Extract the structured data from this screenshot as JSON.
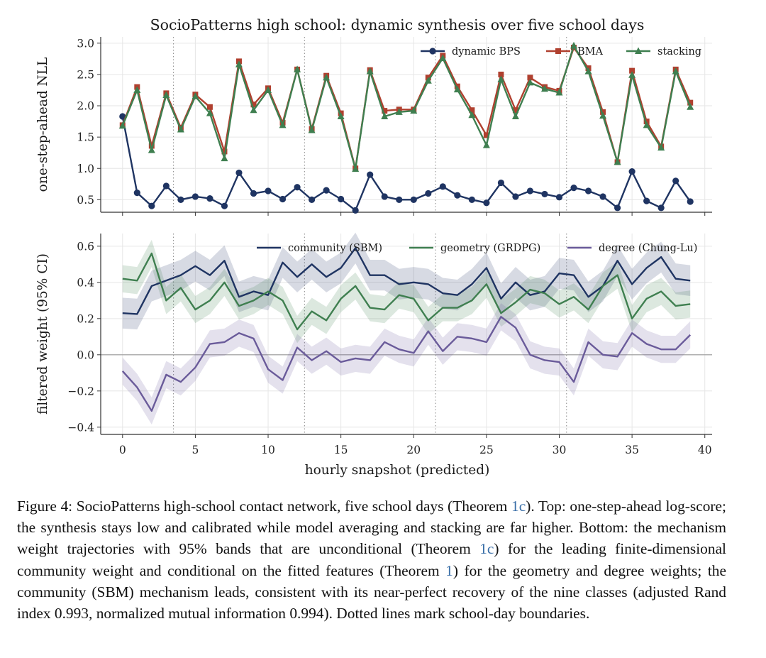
{
  "figure": {
    "title": "SocioPatterns high school: dynamic synthesis over five school days",
    "xlabel": "hourly snapshot (predicted)"
  },
  "caption": {
    "t1": "Figure 4: SocioPatterns high-school contact network, five school days (Theorem ",
    "r1": "1c",
    "t2": "). Top: one-step-ahead log-score; the synthesis stays low and calibrated while model averaging and stacking are far higher. Bottom: the mechanism weight trajectories with 95% bands that are unconditional (Theorem ",
    "r2": "1c",
    "t3": ") for the leading finite-dimensional community weight and conditional on the fitted features (Theorem ",
    "r3": "1",
    "t4": ") for the geometry and degree weights; the community (SBM) mechanism leads, consistent with its near-perfect recovery of the nine classes (adjusted Rand index 0.993, normalized mutual information 0.994). Dotted lines mark school-day boundaries."
  },
  "chart_data": [
    {
      "type": "line",
      "ylabel": "one-step-ahead NLL",
      "xlim": [
        -1.5,
        40.5
      ],
      "ylim": [
        0.3,
        3.1
      ],
      "yticks": [
        0.5,
        1.0,
        1.5,
        2.0,
        2.5,
        3.0
      ],
      "ytick_labels": [
        "0.5",
        "1.0",
        "1.5",
        "2.0",
        "2.5",
        "3.0"
      ],
      "xticks": [
        0,
        5,
        10,
        15,
        20,
        25,
        30,
        35,
        40
      ],
      "day_boundaries": [
        3.5,
        12.5,
        21.5,
        30.5
      ],
      "grid": true,
      "legend_position": "top-right",
      "x": [
        0,
        1,
        2,
        3,
        4,
        5,
        6,
        7,
        8,
        9,
        10,
        11,
        12,
        13,
        14,
        15,
        16,
        17,
        18,
        19,
        20,
        21,
        22,
        23,
        24,
        25,
        26,
        27,
        28,
        29,
        30,
        31,
        32,
        33,
        34,
        35,
        36,
        37,
        38,
        39
      ],
      "series": [
        {
          "name": "dynamic BPS",
          "color": "#1f3462",
          "marker": "circle",
          "values": [
            1.83,
            0.61,
            0.4,
            0.72,
            0.5,
            0.55,
            0.52,
            0.4,
            0.93,
            0.6,
            0.64,
            0.51,
            0.7,
            0.5,
            0.65,
            0.51,
            0.33,
            0.9,
            0.55,
            0.5,
            0.5,
            0.6,
            0.71,
            0.57,
            0.5,
            0.45,
            0.77,
            0.55,
            0.64,
            0.59,
            0.54,
            0.69,
            0.64,
            0.55,
            0.37,
            0.95,
            0.48,
            0.37,
            0.8,
            0.47
          ]
        },
        {
          "name": "BMA",
          "color": "#b0402f",
          "marker": "square",
          "values": [
            1.69,
            2.3,
            1.36,
            2.2,
            1.65,
            2.18,
            1.98,
            1.27,
            2.71,
            2.02,
            2.28,
            1.73,
            2.58,
            1.63,
            2.48,
            1.88,
            1.0,
            2.57,
            1.92,
            1.94,
            1.94,
            2.45,
            2.8,
            2.31,
            1.93,
            1.53,
            2.5,
            1.93,
            2.45,
            2.3,
            2.24,
            2.93,
            2.6,
            1.9,
            1.1,
            2.56,
            1.75,
            1.35,
            2.58,
            2.05
          ]
        },
        {
          "name": "stacking",
          "color": "#3f7f50",
          "marker": "triangle",
          "values": [
            1.68,
            2.25,
            1.29,
            2.17,
            1.62,
            2.15,
            1.88,
            1.16,
            2.66,
            1.93,
            2.25,
            1.69,
            2.58,
            1.61,
            2.45,
            1.83,
            0.99,
            2.55,
            1.83,
            1.9,
            1.92,
            2.4,
            2.76,
            2.26,
            1.85,
            1.37,
            2.42,
            1.83,
            2.37,
            2.27,
            2.21,
            2.96,
            2.55,
            1.84,
            1.1,
            2.49,
            1.69,
            1.33,
            2.55,
            1.98
          ]
        }
      ]
    },
    {
      "type": "line",
      "ylabel": "filtered weight (95% CI)",
      "xlim": [
        -1.5,
        40.5
      ],
      "ylim": [
        -0.44,
        0.67
      ],
      "yticks": [
        -0.4,
        -0.2,
        0.0,
        0.2,
        0.4,
        0.6
      ],
      "ytick_labels": [
        "−0.4",
        "−0.2",
        "0.0",
        "0.2",
        "0.4",
        "0.6"
      ],
      "xticks": [
        0,
        5,
        10,
        15,
        20,
        25,
        30,
        35,
        40
      ],
      "xtick_labels": [
        "0",
        "5",
        "10",
        "15",
        "20",
        "25",
        "30",
        "35",
        "40"
      ],
      "day_boundaries": [
        3.5,
        12.5,
        21.5,
        30.5
      ],
      "zero_line": true,
      "grid": true,
      "legend_position": "top-right",
      "x": [
        0,
        1,
        2,
        3,
        4,
        5,
        6,
        7,
        8,
        9,
        10,
        11,
        12,
        13,
        14,
        15,
        16,
        17,
        18,
        19,
        20,
        21,
        22,
        23,
        24,
        25,
        26,
        27,
        28,
        29,
        30,
        31,
        32,
        33,
        34,
        35,
        36,
        37,
        38,
        39
      ],
      "series": [
        {
          "name": "community (SBM)",
          "color": "#1f3462",
          "band_halfwidth": 0.085,
          "values": [
            0.23,
            0.225,
            0.38,
            0.41,
            0.44,
            0.49,
            0.44,
            0.52,
            0.32,
            0.35,
            0.33,
            0.51,
            0.43,
            0.5,
            0.43,
            0.48,
            0.59,
            0.44,
            0.44,
            0.39,
            0.4,
            0.39,
            0.34,
            0.33,
            0.39,
            0.48,
            0.31,
            0.4,
            0.33,
            0.35,
            0.45,
            0.44,
            0.32,
            0.38,
            0.52,
            0.39,
            0.48,
            0.54,
            0.42,
            0.41
          ]
        },
        {
          "name": "geometry (GRDPG)",
          "color": "#3f7f50",
          "band_halfwidth": 0.075,
          "values": [
            0.42,
            0.41,
            0.56,
            0.3,
            0.37,
            0.25,
            0.3,
            0.4,
            0.27,
            0.3,
            0.35,
            0.3,
            0.14,
            0.24,
            0.19,
            0.31,
            0.38,
            0.26,
            0.25,
            0.33,
            0.31,
            0.19,
            0.26,
            0.26,
            0.3,
            0.39,
            0.23,
            0.29,
            0.36,
            0.34,
            0.28,
            0.32,
            0.25,
            0.38,
            0.44,
            0.2,
            0.31,
            0.35,
            0.27,
            0.28
          ]
        },
        {
          "name": "degree (Chung-Lu)",
          "color": "#6a5b9a",
          "band_halfwidth": 0.075,
          "values": [
            -0.09,
            -0.18,
            -0.31,
            -0.11,
            -0.15,
            -0.07,
            0.06,
            0.07,
            0.12,
            0.09,
            -0.08,
            -0.14,
            0.04,
            -0.03,
            0.02,
            -0.04,
            -0.02,
            -0.03,
            0.07,
            0.03,
            0.01,
            0.13,
            0.02,
            0.1,
            0.09,
            0.07,
            0.21,
            0.15,
            0.0,
            -0.03,
            -0.04,
            -0.15,
            0.07,
            0.0,
            -0.01,
            0.12,
            0.06,
            0.03,
            0.03,
            0.11
          ]
        }
      ]
    }
  ]
}
